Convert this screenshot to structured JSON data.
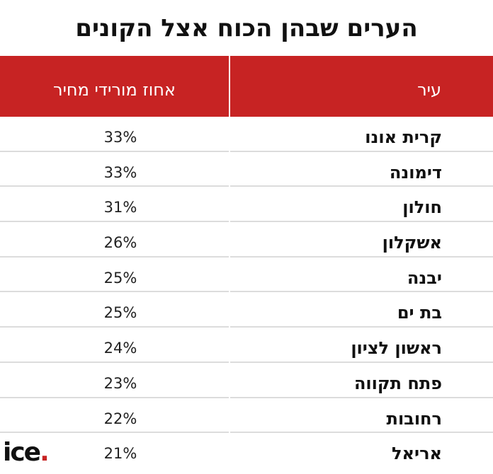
{
  "title": "הערים שבהן הכוח אצל הקונים",
  "chart_data": {
    "type": "table",
    "columns": [
      "עיר",
      "אחוז מורידי מחיר"
    ],
    "rows": [
      {
        "city": "קרית אונו",
        "percent": "33%"
      },
      {
        "city": "דימונה",
        "percent": "33%"
      },
      {
        "city": "חולון",
        "percent": "31%"
      },
      {
        "city": "אשקלון",
        "percent": "26%"
      },
      {
        "city": "יבנה",
        "percent": "25%"
      },
      {
        "city": "בת ים",
        "percent": "25%"
      },
      {
        "city": "ראשון לציון",
        "percent": "24%"
      },
      {
        "city": "פתח תקווה",
        "percent": "23%"
      },
      {
        "city": "רחובות",
        "percent": "22%"
      },
      {
        "city": "אריאל",
        "percent": "21%"
      }
    ]
  },
  "logo": {
    "text": "ice",
    "dot": "."
  },
  "colors": {
    "header_bg": "#c72323",
    "header_text": "#ffffff",
    "row_divider": "#dcdcdc",
    "logo_dot": "#c72323"
  }
}
